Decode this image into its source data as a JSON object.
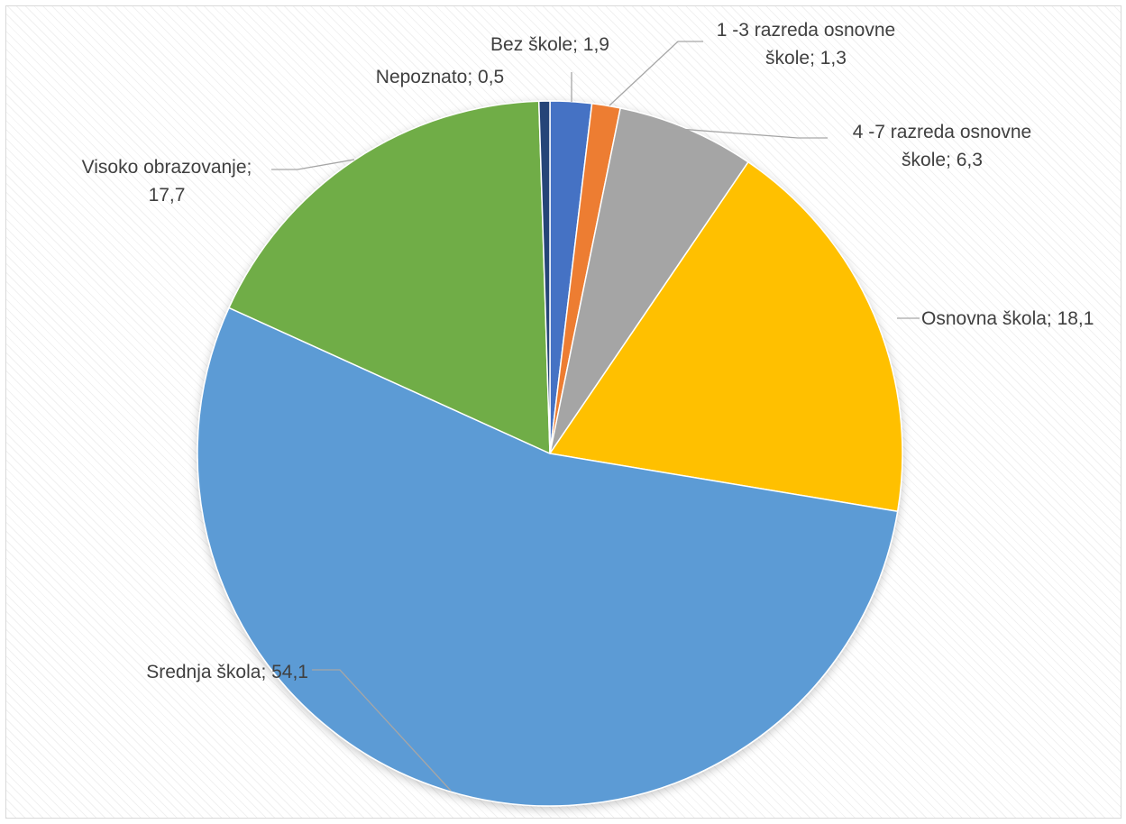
{
  "chart_data": {
    "type": "pie",
    "title": "",
    "slices": [
      {
        "label": "Bez škole; 1,9",
        "value": 1.9,
        "color": "#4472c4"
      },
      {
        "label": "1 -3 razreda osnovne škole; 1,3",
        "value": 1.3,
        "color": "#ed7d31"
      },
      {
        "label": "4 -7 razreda osnovne škole; 6,3",
        "value": 6.3,
        "color": "#a5a5a5"
      },
      {
        "label": "Osnovna škola; 18,1",
        "value": 18.1,
        "color": "#ffc000"
      },
      {
        "label": "Srednja škola; 54,1",
        "value": 54.1,
        "color": "#5b9bd5"
      },
      {
        "label": "Visoko obrazovanje; 17,7",
        "value": 17.7,
        "color": "#70ad47"
      },
      {
        "label": "Nepoznato; 0,5",
        "value": 0.5,
        "color": "#264478"
      }
    ],
    "label_lines": [
      [
        "Bez škole; 1,9"
      ],
      [
        "1 -3 razreda osnovne",
        "škole; 1,3"
      ],
      [
        "4 -7 razreda osnovne",
        "škole; 6,3"
      ],
      [
        "Osnovna škola; 18,1"
      ],
      [
        "Srednja škola; 54,1"
      ],
      [
        "Visoko obrazovanje;",
        "17,7"
      ],
      [
        "Nepoznato; 0,5"
      ]
    ]
  }
}
